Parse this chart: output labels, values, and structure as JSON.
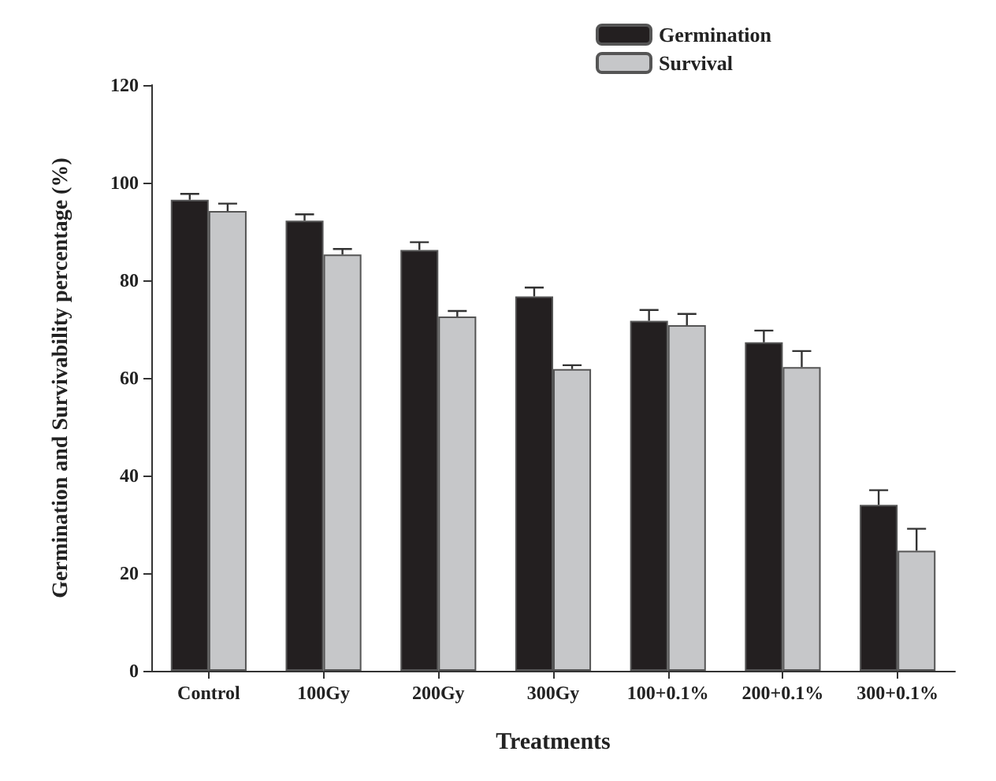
{
  "chart_data": {
    "type": "bar",
    "xlabel": "Treatments",
    "ylabel": "Germination and Survivability percentage (%)",
    "categories": [
      "Control",
      "100Gy",
      "200Gy",
      "300Gy",
      "100+0.1%",
      "200+0.1%",
      "300+0.1%"
    ],
    "series": [
      {
        "name": "Germination",
        "color": "#231f20",
        "values": [
          96.5,
          92.2,
          86.2,
          76.7,
          71.7,
          67.3,
          34
        ],
        "errors": [
          [
            96.5,
            97.7
          ],
          [
            92.2,
            93.5
          ],
          [
            86.2,
            87.8
          ],
          [
            76.7,
            78.5
          ],
          [
            71.7,
            73.9
          ],
          [
            67.3,
            69.7
          ],
          [
            34,
            37
          ]
        ]
      },
      {
        "name": "Survival",
        "color": "#c6c7c9",
        "values": [
          94.2,
          85.3,
          72.6,
          61.8,
          70.8,
          62.2,
          24.6
        ],
        "errors": [
          [
            94.2,
            95.7
          ],
          [
            85.3,
            86.4
          ],
          [
            72.6,
            73.7
          ],
          [
            61.8,
            62.6
          ],
          [
            70.8,
            73.1
          ],
          [
            62.2,
            65.5
          ],
          [
            24.6,
            29.1
          ]
        ]
      }
    ],
    "ylim": [
      0,
      120
    ],
    "yticks": [
      0,
      20,
      40,
      60,
      80,
      100,
      120
    ],
    "grid": false,
    "legend": "top right"
  }
}
